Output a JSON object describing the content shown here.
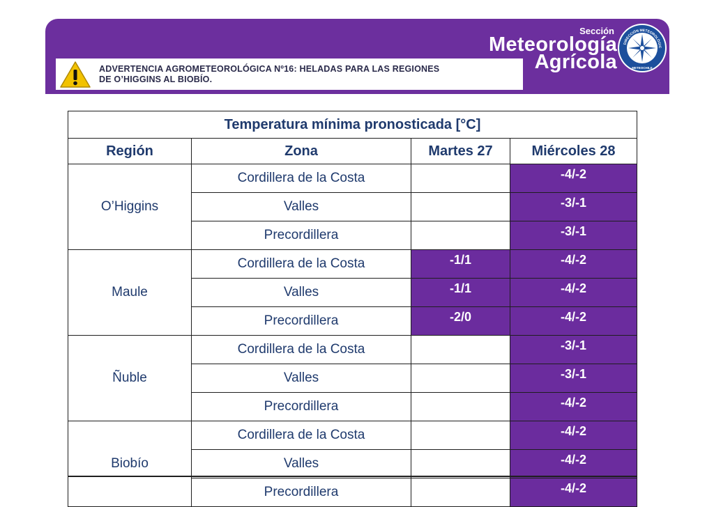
{
  "alert": {
    "line1": "ADVERTENCIA AGROMETEOROLÓGICA Nº16: HELADAS PARA LAS REGIONES",
    "line2": "DE O’HIGGINS AL BIOBÍO."
  },
  "brand": {
    "section": "Sección",
    "line1": "Meteorología",
    "line2": "Agrícola",
    "seal_text_top": "DIRECCIÓN METEOROLÓGICA",
    "seal_text_bottom": "METEOCHILE"
  },
  "colors": {
    "banner": "#6c2f9e",
    "filled_cell": "#6b2c9e",
    "text": "#1f3a6d",
    "warning": "#f2c200"
  },
  "table": {
    "title": "Temperatura mínima pronosticada [°C]",
    "headers": [
      "Región",
      "Zona",
      "Martes 27",
      "Miércoles 28"
    ],
    "regions": [
      {
        "name": "O’Higgins",
        "rows": [
          {
            "zona": "Cordillera de la Costa",
            "martes": "",
            "miercoles": "-4/-2"
          },
          {
            "zona": "Valles",
            "martes": "",
            "miercoles": "-3/-1"
          },
          {
            "zona": "Precordillera",
            "martes": "",
            "miercoles": "-3/-1"
          }
        ]
      },
      {
        "name": "Maule",
        "rows": [
          {
            "zona": "Cordillera de la Costa",
            "martes": "-1/1",
            "miercoles": "-4/-2"
          },
          {
            "zona": "Valles",
            "martes": "-1/1",
            "miercoles": "-4/-2"
          },
          {
            "zona": "Precordillera",
            "martes": "-2/0",
            "miercoles": "-4/-2"
          }
        ]
      },
      {
        "name": "Ñuble",
        "rows": [
          {
            "zona": "Cordillera de la Costa",
            "martes": "",
            "miercoles": "-3/-1"
          },
          {
            "zona": "Valles",
            "martes": "",
            "miercoles": "-3/-1"
          },
          {
            "zona": "Precordillera",
            "martes": "",
            "miercoles": "-4/-2"
          }
        ]
      },
      {
        "name": "Biobío",
        "rows": [
          {
            "zona": "Cordillera de la Costa",
            "martes": "",
            "miercoles": "-4/-2"
          },
          {
            "zona": "Valles",
            "martes": "",
            "miercoles": "-4/-2"
          },
          {
            "zona": "Precordillera",
            "martes": "",
            "miercoles": "-4/-2"
          }
        ]
      }
    ]
  }
}
